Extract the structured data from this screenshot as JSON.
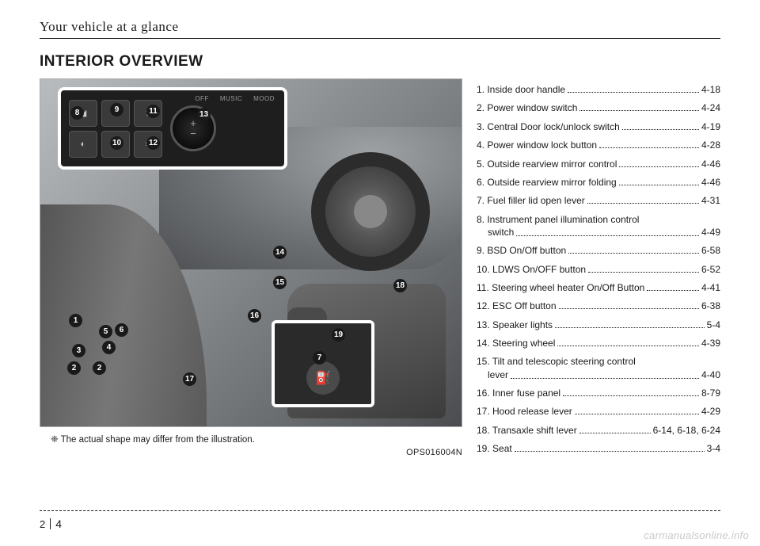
{
  "header": {
    "section_name": "Your vehicle at a glance",
    "title": "INTERIOR OVERVIEW"
  },
  "figure": {
    "caption": "❈ The actual shape may differ from the illustration.",
    "code": "OPS016004N",
    "inset_panel": {
      "dial_labels": [
        "OFF",
        "MUSIC",
        "MOOD"
      ],
      "dial_plus": "+",
      "dial_minus": "−"
    },
    "callouts": {
      "c1": "1",
      "c2": "2",
      "c3": "3",
      "c4": "4",
      "c5": "5",
      "c6": "6",
      "c7": "7",
      "c8": "8",
      "c9": "9",
      "c10": "10",
      "c11": "11",
      "c12": "12",
      "c13": "13",
      "c14": "14",
      "c15": "15",
      "c16": "16",
      "c17": "17",
      "c18": "18",
      "c19": "19"
    }
  },
  "list": [
    {
      "label": "1. Inside door handle",
      "page": "4-18"
    },
    {
      "label": "2. Power window switch",
      "page": "4-24"
    },
    {
      "label": "3. Central Door lock/unlock switch",
      "page": "4-19"
    },
    {
      "label": "4. Power window lock button",
      "page": "4-28"
    },
    {
      "label": "5. Outside rearview mirror control",
      "page": "4-46"
    },
    {
      "label": "6. Outside rearview mirror folding",
      "page": "4-46"
    },
    {
      "label": "7. Fuel filler lid open lever",
      "page": "4-31"
    },
    {
      "label": "8. Instrument panel illumination control",
      "cont_label": "switch",
      "page": "4-49"
    },
    {
      "label": "9. BSD On/Off button",
      "page": "6-58"
    },
    {
      "label": "10. LDWS On/OFF button",
      "page": "6-52"
    },
    {
      "label": "11. Steering wheel heater On/Off Button",
      "page": "4-41"
    },
    {
      "label": "12. ESC Off button",
      "page": "6-38"
    },
    {
      "label": "13. Speaker lights",
      "page": "5-4"
    },
    {
      "label": "14. Steering wheel",
      "page": "4-39"
    },
    {
      "label": "15. Tilt and telescopic steering control",
      "cont_label": "lever",
      "page": "4-40"
    },
    {
      "label": "16. Inner fuse panel",
      "page": "8-79"
    },
    {
      "label": "17. Hood release lever",
      "page": "4-29"
    },
    {
      "label": "18. Transaxle shift lever",
      "page": "6-14, 6-18, 6-24"
    },
    {
      "label": "19. Seat",
      "page": "3-4"
    }
  ],
  "footer": {
    "chapter": "2",
    "page": "4"
  },
  "watermark": "carmanualsonline.info"
}
